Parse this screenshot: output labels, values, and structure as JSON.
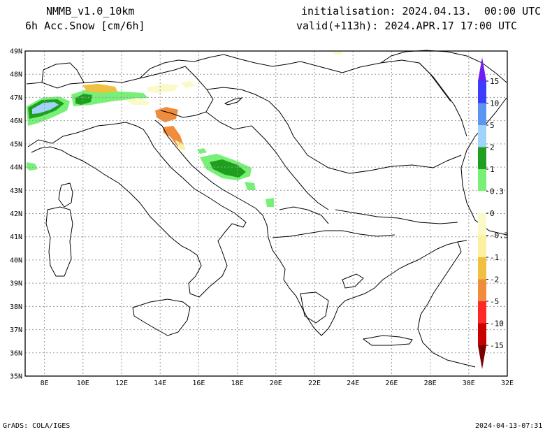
{
  "header": {
    "model": "NMMB_v1.0_10km",
    "field": "6h Acc.Snow [cm/6h]",
    "init": "initialisation: 2024.04.13.  00:00 UTC",
    "valid": "valid(+113h): 2024.APR.17 17:00 UTC"
  },
  "map": {
    "lon_range": [
      7,
      32
    ],
    "lat_range": [
      35,
      49
    ],
    "lon_ticks": [
      "8E",
      "10E",
      "12E",
      "14E",
      "16E",
      "18E",
      "20E",
      "22E",
      "24E",
      "26E",
      "28E",
      "30E",
      "32E"
    ],
    "lat_ticks": [
      "35N",
      "36N",
      "37N",
      "38N",
      "39N",
      "40N",
      "41N",
      "42N",
      "43N",
      "44N",
      "45N",
      "46N",
      "47N",
      "48N",
      "49N"
    ],
    "grid": true
  },
  "legend": {
    "labels": [
      "15",
      "10",
      "5",
      "2",
      "1",
      "0.3",
      "0",
      "-0.3",
      "-1",
      "-2",
      "-5",
      "-10",
      "-15"
    ],
    "colors": [
      "#6e1ef0",
      "#3c3cff",
      "#5a96f0",
      "#a0d2fa",
      "#1ea01e",
      "#78f078",
      "#ffffff",
      "#fafac8",
      "#faf0a0",
      "#f0c040",
      "#f08c3c",
      "#ff2828",
      "#c80000",
      "#780000"
    ]
  },
  "footer": {
    "left": "GrADS: COLA/IGES",
    "right": "2024-04-13-07:31"
  }
}
